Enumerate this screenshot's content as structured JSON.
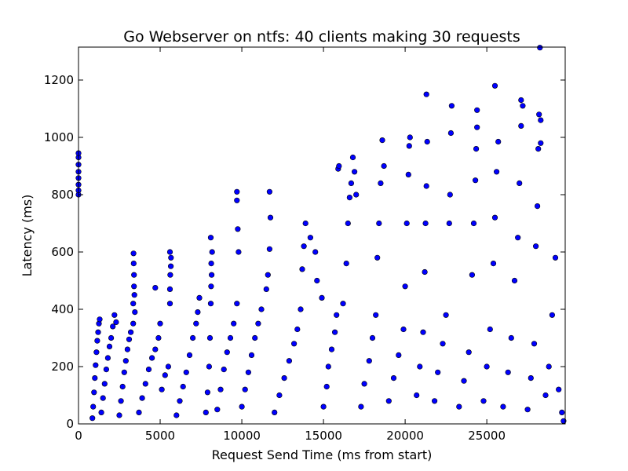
{
  "chart_data": {
    "type": "scatter",
    "title": "Go Webserver on ntfs: 40 clients making 30 requests",
    "xlabel": "Request Send Time (ms from start)",
    "ylabel": "Latency (ms)",
    "xlim": [
      0,
      29800
    ],
    "ylim": [
      0,
      1315
    ],
    "xticks": [
      0,
      5000,
      10000,
      15000,
      20000,
      25000
    ],
    "yticks": [
      0,
      200,
      400,
      600,
      800,
      1000,
      1200
    ],
    "grid": false,
    "legend": "none",
    "marker_color": "#0000ff",
    "marker_edge_color": "#000000",
    "series": [
      {
        "points": [
          [
            0,
            800
          ],
          [
            0,
            815
          ],
          [
            0,
            835
          ],
          [
            0,
            858
          ],
          [
            0,
            880
          ],
          [
            0,
            905
          ],
          [
            0,
            930
          ],
          [
            0,
            945
          ],
          [
            850,
            20
          ],
          [
            900,
            60
          ],
          [
            950,
            110
          ],
          [
            1000,
            160
          ],
          [
            1050,
            205
          ],
          [
            1100,
            250
          ],
          [
            1150,
            290
          ],
          [
            1200,
            320
          ],
          [
            1250,
            350
          ],
          [
            1300,
            365
          ],
          [
            1400,
            40
          ],
          [
            1500,
            90
          ],
          [
            1600,
            140
          ],
          [
            1700,
            190
          ],
          [
            1800,
            230
          ],
          [
            1900,
            270
          ],
          [
            2000,
            300
          ],
          [
            2100,
            340
          ],
          [
            2200,
            380
          ],
          [
            2300,
            355
          ],
          [
            2500,
            30
          ],
          [
            2600,
            80
          ],
          [
            2700,
            130
          ],
          [
            2800,
            180
          ],
          [
            2900,
            220
          ],
          [
            3000,
            260
          ],
          [
            3100,
            295
          ],
          [
            3200,
            320
          ],
          [
            3350,
            350
          ],
          [
            3350,
            420
          ],
          [
            3400,
            480
          ],
          [
            3400,
            520
          ],
          [
            3380,
            560
          ],
          [
            3370,
            595
          ],
          [
            3420,
            450
          ],
          [
            3450,
            390
          ],
          [
            3700,
            40
          ],
          [
            3900,
            90
          ],
          [
            4100,
            140
          ],
          [
            4300,
            190
          ],
          [
            4500,
            230
          ],
          [
            4700,
            260
          ],
          [
            4900,
            300
          ],
          [
            5000,
            350
          ],
          [
            4700,
            475
          ],
          [
            5100,
            120
          ],
          [
            5300,
            170
          ],
          [
            5500,
            200
          ],
          [
            5600,
            420
          ],
          [
            5600,
            470
          ],
          [
            5620,
            520
          ],
          [
            5650,
            550
          ],
          [
            5660,
            580
          ],
          [
            5600,
            600
          ],
          [
            6000,
            30
          ],
          [
            6200,
            80
          ],
          [
            6400,
            130
          ],
          [
            6600,
            180
          ],
          [
            6800,
            240
          ],
          [
            7000,
            300
          ],
          [
            7200,
            350
          ],
          [
            7300,
            390
          ],
          [
            7400,
            440
          ],
          [
            7800,
            40
          ],
          [
            7900,
            110
          ],
          [
            8000,
            200
          ],
          [
            8050,
            300
          ],
          [
            8100,
            420
          ],
          [
            8120,
            480
          ],
          [
            8150,
            520
          ],
          [
            8130,
            560
          ],
          [
            8180,
            600
          ],
          [
            8100,
            650
          ],
          [
            8500,
            50
          ],
          [
            8700,
            120
          ],
          [
            8900,
            190
          ],
          [
            9100,
            250
          ],
          [
            9300,
            300
          ],
          [
            9500,
            350
          ],
          [
            9700,
            420
          ],
          [
            9800,
            600
          ],
          [
            9750,
            680
          ],
          [
            9700,
            780
          ],
          [
            9700,
            810
          ],
          [
            10000,
            60
          ],
          [
            10200,
            120
          ],
          [
            10400,
            180
          ],
          [
            10600,
            240
          ],
          [
            10800,
            300
          ],
          [
            11000,
            350
          ],
          [
            11200,
            400
          ],
          [
            11500,
            470
          ],
          [
            11600,
            520
          ],
          [
            11700,
            610
          ],
          [
            11750,
            720
          ],
          [
            11700,
            810
          ],
          [
            12000,
            40
          ],
          [
            12300,
            100
          ],
          [
            12600,
            160
          ],
          [
            12900,
            220
          ],
          [
            13200,
            280
          ],
          [
            13400,
            330
          ],
          [
            13600,
            400
          ],
          [
            13700,
            540
          ],
          [
            13800,
            620
          ],
          [
            13900,
            700
          ],
          [
            14200,
            650
          ],
          [
            14500,
            600
          ],
          [
            14600,
            500
          ],
          [
            14900,
            440
          ],
          [
            15000,
            60
          ],
          [
            15200,
            130
          ],
          [
            15300,
            200
          ],
          [
            15500,
            260
          ],
          [
            15700,
            320
          ],
          [
            15800,
            380
          ],
          [
            15900,
            890
          ],
          [
            15950,
            900
          ],
          [
            16200,
            420
          ],
          [
            16400,
            560
          ],
          [
            16500,
            700
          ],
          [
            16600,
            790
          ],
          [
            16700,
            840
          ],
          [
            16800,
            930
          ],
          [
            16900,
            880
          ],
          [
            17000,
            800
          ],
          [
            17300,
            60
          ],
          [
            17500,
            140
          ],
          [
            17800,
            220
          ],
          [
            18000,
            300
          ],
          [
            18200,
            380
          ],
          [
            18300,
            580
          ],
          [
            18400,
            700
          ],
          [
            18500,
            840
          ],
          [
            18600,
            990
          ],
          [
            18700,
            900
          ],
          [
            19000,
            80
          ],
          [
            19300,
            160
          ],
          [
            19600,
            240
          ],
          [
            19900,
            330
          ],
          [
            20000,
            480
          ],
          [
            20100,
            700
          ],
          [
            20200,
            870
          ],
          [
            20250,
            970
          ],
          [
            20300,
            1000
          ],
          [
            20700,
            100
          ],
          [
            20900,
            200
          ],
          [
            21100,
            320
          ],
          [
            21200,
            530
          ],
          [
            21250,
            700
          ],
          [
            21300,
            830
          ],
          [
            21350,
            985
          ],
          [
            21300,
            1150
          ],
          [
            21800,
            80
          ],
          [
            22000,
            180
          ],
          [
            22300,
            280
          ],
          [
            22500,
            380
          ],
          [
            22700,
            700
          ],
          [
            22750,
            800
          ],
          [
            22800,
            1015
          ],
          [
            22850,
            1110
          ],
          [
            23300,
            60
          ],
          [
            23600,
            150
          ],
          [
            23900,
            250
          ],
          [
            24100,
            520
          ],
          [
            24200,
            700
          ],
          [
            24300,
            850
          ],
          [
            24350,
            960
          ],
          [
            24400,
            1035
          ],
          [
            24400,
            1095
          ],
          [
            24800,
            80
          ],
          [
            25000,
            200
          ],
          [
            25200,
            330
          ],
          [
            25400,
            560
          ],
          [
            25500,
            720
          ],
          [
            25600,
            880
          ],
          [
            25500,
            1180
          ],
          [
            25700,
            985
          ],
          [
            26000,
            60
          ],
          [
            26300,
            180
          ],
          [
            26500,
            300
          ],
          [
            26700,
            500
          ],
          [
            26900,
            650
          ],
          [
            27000,
            840
          ],
          [
            27100,
            1040
          ],
          [
            27100,
            1130
          ],
          [
            27200,
            1110
          ],
          [
            27500,
            50
          ],
          [
            27700,
            160
          ],
          [
            27900,
            280
          ],
          [
            28000,
            620
          ],
          [
            28100,
            760
          ],
          [
            28150,
            960
          ],
          [
            28200,
            1080
          ],
          [
            28300,
            1060
          ],
          [
            28300,
            980
          ],
          [
            28250,
            1313
          ],
          [
            28600,
            100
          ],
          [
            28800,
            200
          ],
          [
            29000,
            380
          ],
          [
            29200,
            580
          ],
          [
            29400,
            120
          ],
          [
            29600,
            40
          ],
          [
            29700,
            10
          ]
        ]
      }
    ]
  }
}
